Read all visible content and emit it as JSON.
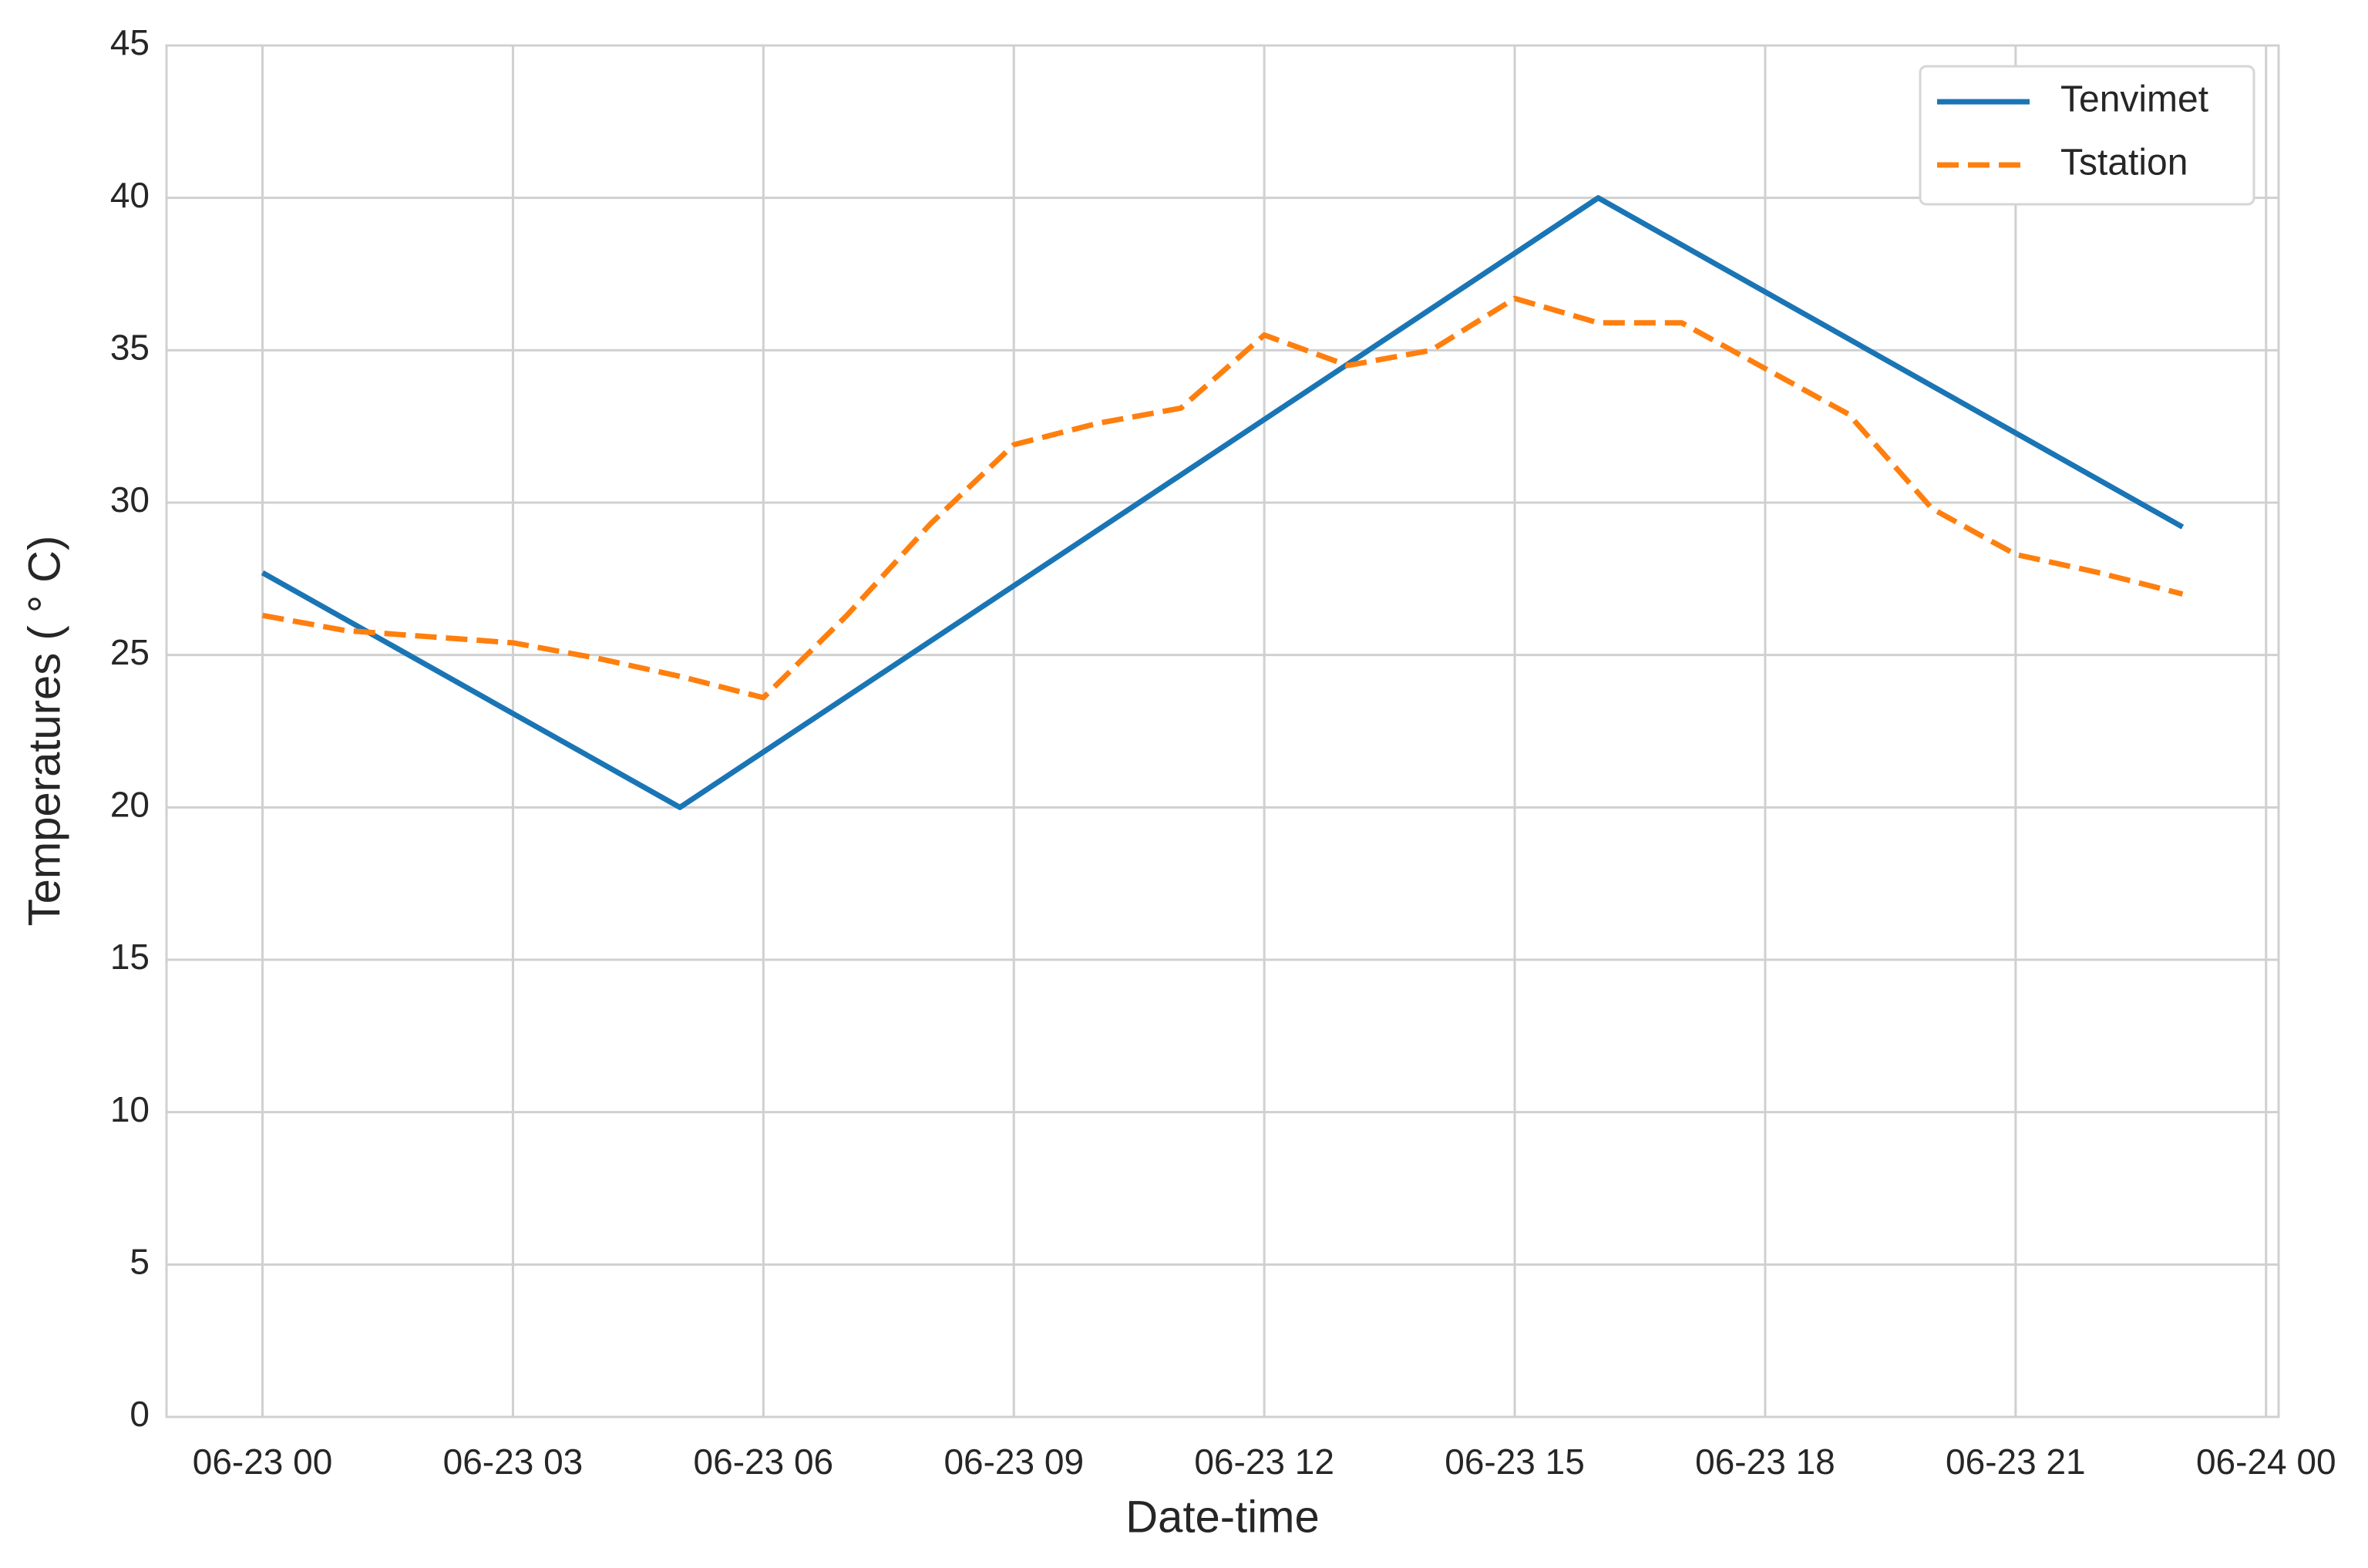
{
  "chart_data": {
    "type": "line",
    "xlabel": "Date-time",
    "ylabel": "Temperatures ( ° C)",
    "xlim": [
      -1.15,
      24.15
    ],
    "ylim": [
      0,
      45
    ],
    "xticks": [
      {
        "value": 0,
        "label": "06-23 00"
      },
      {
        "value": 3,
        "label": "06-23 03"
      },
      {
        "value": 6,
        "label": "06-23 06"
      },
      {
        "value": 9,
        "label": "06-23 09"
      },
      {
        "value": 12,
        "label": "06-23 12"
      },
      {
        "value": 15,
        "label": "06-23 15"
      },
      {
        "value": 18,
        "label": "06-23 18"
      },
      {
        "value": 21,
        "label": "06-23 21"
      },
      {
        "value": 24,
        "label": "06-24 00"
      }
    ],
    "yticks": [
      0,
      5,
      10,
      15,
      20,
      25,
      30,
      35,
      40,
      45
    ],
    "grid": true,
    "legend": "upper right",
    "series": [
      {
        "name": "Tenvimet",
        "color": "#1a75b5",
        "dash": "solid",
        "x": [
          0,
          5,
          16,
          23
        ],
        "values": [
          27.7,
          20.0,
          40.0,
          29.2
        ]
      },
      {
        "name": "Tstation",
        "color": "#ff7f0e",
        "dash": "dashed",
        "x": [
          0,
          1,
          2,
          3,
          4,
          5,
          6,
          7,
          8,
          9,
          10,
          11,
          12,
          13,
          14,
          15,
          16,
          17,
          18,
          19,
          20,
          21,
          22,
          23
        ],
        "values": [
          26.3,
          25.8,
          25.6,
          25.4,
          24.9,
          24.3,
          23.6,
          26.3,
          29.3,
          31.9,
          32.6,
          33.1,
          35.5,
          34.5,
          35.0,
          36.7,
          35.9,
          35.9,
          34.4,
          32.9,
          29.8,
          28.3,
          27.7,
          27.0
        ]
      }
    ]
  }
}
